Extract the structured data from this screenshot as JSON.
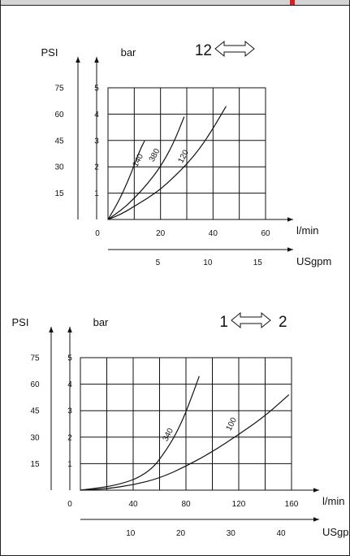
{
  "chart_data": [
    {
      "type": "line",
      "title": "",
      "ports": {
        "left": "12",
        "right": ""
      },
      "ylabel_left": "PSI",
      "ylabel_right": "bar",
      "xlabel_top": "l/min",
      "xlabel_bottom": "USgpm",
      "psi_ticks": [
        "75",
        "60",
        "45",
        "30",
        "15"
      ],
      "bar_ticks": [
        "5",
        "4",
        "3",
        "2",
        "1"
      ],
      "lmin_ticks": [
        "0",
        "20",
        "40",
        "60"
      ],
      "usgpm_ticks": [
        "5",
        "10",
        "15"
      ],
      "xlim": [
        0,
        60
      ],
      "ylim": [
        0,
        5
      ],
      "usgpm_positions": [
        19,
        38,
        57
      ],
      "grid": true,
      "series": [
        {
          "name": "140",
          "x": [
            0,
            3,
            6,
            9,
            12,
            14
          ],
          "y": [
            0,
            0.5,
            1.1,
            1.8,
            2.6,
            3.0
          ],
          "label_at": [
            12.2,
            2.2
          ]
        },
        {
          "name": "380",
          "x": [
            0,
            5,
            10,
            15,
            20,
            25,
            29
          ],
          "y": [
            0,
            0.35,
            0.8,
            1.35,
            2.0,
            2.9,
            3.9
          ],
          "label_at": [
            18.5,
            2.4
          ]
        },
        {
          "name": "120",
          "x": [
            0,
            5,
            10,
            15,
            20,
            25,
            30,
            35,
            40,
            45
          ],
          "y": [
            0,
            0.2,
            0.5,
            0.8,
            1.15,
            1.6,
            2.1,
            2.7,
            3.45,
            4.3
          ],
          "label_at": [
            29.5,
            2.35
          ]
        }
      ]
    },
    {
      "type": "line",
      "title": "",
      "ports": {
        "left": "1",
        "right": "2"
      },
      "ylabel_left": "PSI",
      "ylabel_right": "bar",
      "xlabel_top": "l/min",
      "xlabel_bottom": "USgpm",
      "psi_ticks": [
        "75",
        "60",
        "45",
        "30",
        "15"
      ],
      "bar_ticks": [
        "5",
        "4",
        "3",
        "2",
        "1"
      ],
      "lmin_ticks": [
        "0",
        "40",
        "80",
        "120",
        "160"
      ],
      "usgpm_ticks": [
        "10",
        "20",
        "30",
        "40"
      ],
      "xlim": [
        0,
        160
      ],
      "ylim": [
        0,
        5
      ],
      "usgpm_positions": [
        38,
        76,
        114,
        152
      ],
      "grid": true,
      "series": [
        {
          "name": "340",
          "x": [
            0,
            20,
            35,
            45,
            55,
            62,
            70,
            78,
            85,
            90
          ],
          "y": [
            0,
            0.12,
            0.3,
            0.5,
            0.85,
            1.3,
            1.9,
            2.7,
            3.6,
            4.3
          ],
          "label_at": [
            68,
            2.05
          ]
        },
        {
          "name": "100",
          "x": [
            0,
            20,
            40,
            60,
            80,
            100,
            120,
            140,
            158
          ],
          "y": [
            0,
            0.05,
            0.2,
            0.45,
            0.9,
            1.45,
            2.1,
            2.8,
            3.6
          ],
          "label_at": [
            116,
            2.45
          ]
        }
      ]
    }
  ]
}
